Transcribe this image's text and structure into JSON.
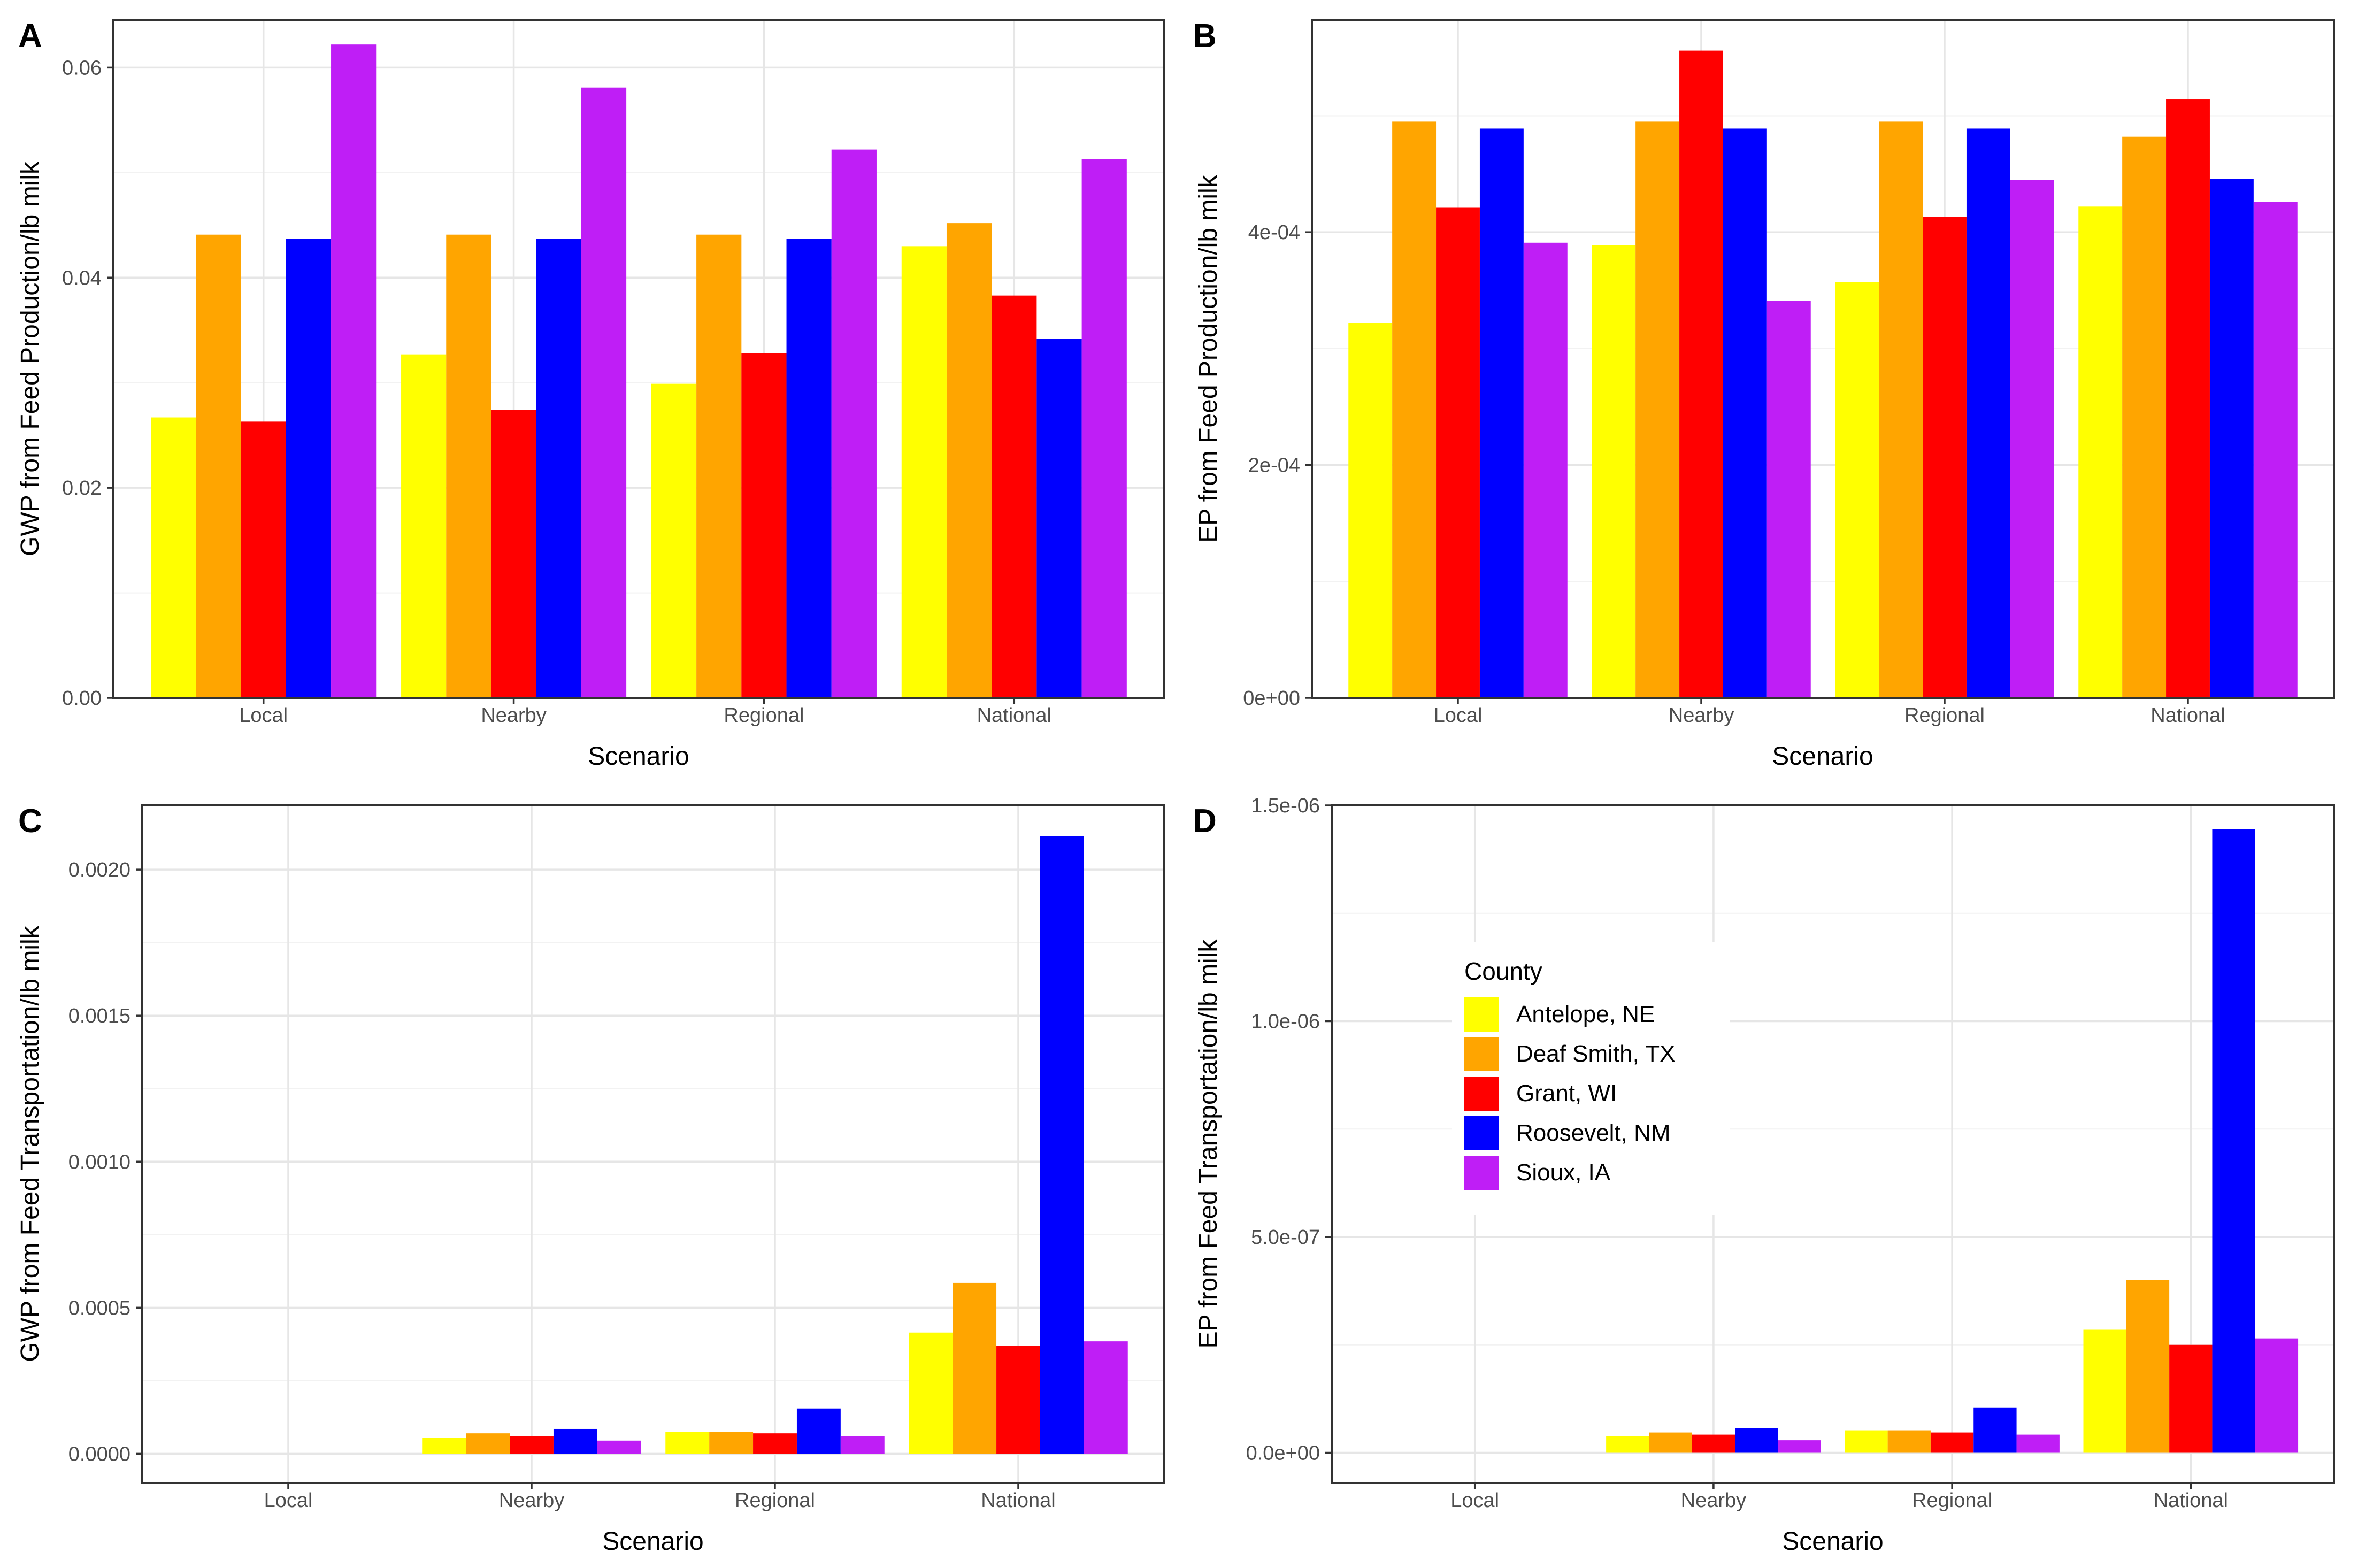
{
  "legend": {
    "title": "County",
    "placement": "inside-panel-D",
    "entries": [
      {
        "name": "Antelope, NE",
        "color": "#FFFF00"
      },
      {
        "name": "Deaf Smith, TX",
        "color": "#FFA500"
      },
      {
        "name": "Grant, WI",
        "color": "#FF0000"
      },
      {
        "name": "Roosevelt, NM",
        "color": "#0000FF"
      },
      {
        "name": "Sioux, IA",
        "color": "#BF1EF6"
      }
    ]
  },
  "chart_data": [
    {
      "panel": "A",
      "type": "bar",
      "xlabel": "Scenario",
      "ylabel": "GWP from Feed Production/lb milk",
      "categories": [
        "Local",
        "Nearby",
        "Regional",
        "National"
      ],
      "ylim": [
        0,
        0.0645
      ],
      "yticks": [
        0,
        0.02,
        0.04,
        0.06
      ],
      "ytick_labels": [
        "0.00",
        "0.02",
        "0.04",
        "0.06"
      ],
      "grid": true,
      "series": [
        {
          "name": "Antelope, NE",
          "values": [
            0.0267,
            0.0327,
            0.0299,
            0.043
          ]
        },
        {
          "name": "Deaf Smith, TX",
          "values": [
            0.0441,
            0.0441,
            0.0441,
            0.0452
          ]
        },
        {
          "name": "Grant, WI",
          "values": [
            0.0263,
            0.0274,
            0.0328,
            0.0383
          ]
        },
        {
          "name": "Roosevelt, NM",
          "values": [
            0.0437,
            0.0437,
            0.0437,
            0.0342
          ]
        },
        {
          "name": "Sioux, IA",
          "values": [
            0.0622,
            0.0581,
            0.0522,
            0.0513
          ]
        }
      ]
    },
    {
      "panel": "B",
      "type": "bar",
      "xlabel": "Scenario",
      "ylabel": "EP from Feed Production/lb milk",
      "categories": [
        "Local",
        "Nearby",
        "Regional",
        "National"
      ],
      "ylim": [
        0,
        0.000582
      ],
      "yticks": [
        0,
        0.0002,
        0.0004
      ],
      "ytick_labels": [
        "0e+00",
        "2e-04",
        "4e-04"
      ],
      "grid": true,
      "series": [
        {
          "name": "Antelope, NE",
          "values": [
            0.000322,
            0.000389,
            0.000357,
            0.000422
          ]
        },
        {
          "name": "Deaf Smith, TX",
          "values": [
            0.000495,
            0.000495,
            0.000495,
            0.000482
          ]
        },
        {
          "name": "Grant, WI",
          "values": [
            0.000421,
            0.000556,
            0.000413,
            0.000514
          ]
        },
        {
          "name": "Roosevelt, NM",
          "values": [
            0.000489,
            0.000489,
            0.000489,
            0.000446
          ]
        },
        {
          "name": "Sioux, IA",
          "values": [
            0.000391,
            0.000341,
            0.000445,
            0.000426
          ]
        }
      ]
    },
    {
      "panel": "C",
      "type": "bar",
      "xlabel": "Scenario",
      "ylabel": "GWP from Feed Transportation/lb milk",
      "categories": [
        "Local",
        "Nearby",
        "Regional",
        "National"
      ],
      "ylim": [
        -0.0001,
        0.00222
      ],
      "yticks": [
        0,
        0.0005,
        0.001,
        0.0015,
        0.002
      ],
      "ytick_labels": [
        "0.0000",
        "0.0005",
        "0.0010",
        "0.0015",
        "0.0020"
      ],
      "grid": true,
      "series": [
        {
          "name": "Antelope, NE",
          "values": [
            0,
            5.5e-05,
            7.5e-05,
            0.000415
          ]
        },
        {
          "name": "Deaf Smith, TX",
          "values": [
            0,
            7e-05,
            7.5e-05,
            0.000585
          ]
        },
        {
          "name": "Grant, WI",
          "values": [
            0,
            6e-05,
            7e-05,
            0.00037
          ]
        },
        {
          "name": "Roosevelt, NM",
          "values": [
            0,
            8.5e-05,
            0.000155,
            0.002115
          ]
        },
        {
          "name": "Sioux, IA",
          "values": [
            0,
            4.5e-05,
            6e-05,
            0.000385
          ]
        }
      ]
    },
    {
      "panel": "D",
      "type": "bar",
      "xlabel": "Scenario",
      "ylabel": "EP from Feed Transportation/lb milk",
      "categories": [
        "Local",
        "Nearby",
        "Regional",
        "National"
      ],
      "ylim": [
        -7e-08,
        1.5e-06
      ],
      "yticks": [
        0,
        5e-07,
        1e-06,
        1.5e-06
      ],
      "ytick_labels": [
        "0.0e+00",
        "5.0e-07",
        "1.0e-06",
        "1.5e-06"
      ],
      "grid": true,
      "series": [
        {
          "name": "Antelope, NE",
          "values": [
            0,
            3.8e-08,
            5.2e-08,
            2.85e-07
          ]
        },
        {
          "name": "Deaf Smith, TX",
          "values": [
            0,
            4.7e-08,
            5.2e-08,
            4e-07
          ]
        },
        {
          "name": "Grant, WI",
          "values": [
            0,
            4.2e-08,
            4.7e-08,
            2.5e-07
          ]
        },
        {
          "name": "Roosevelt, NM",
          "values": [
            0,
            5.7e-08,
            1.05e-07,
            1.445e-06
          ]
        },
        {
          "name": "Sioux, IA",
          "values": [
            0,
            2.9e-08,
            4.2e-08,
            2.65e-07
          ]
        }
      ]
    }
  ]
}
